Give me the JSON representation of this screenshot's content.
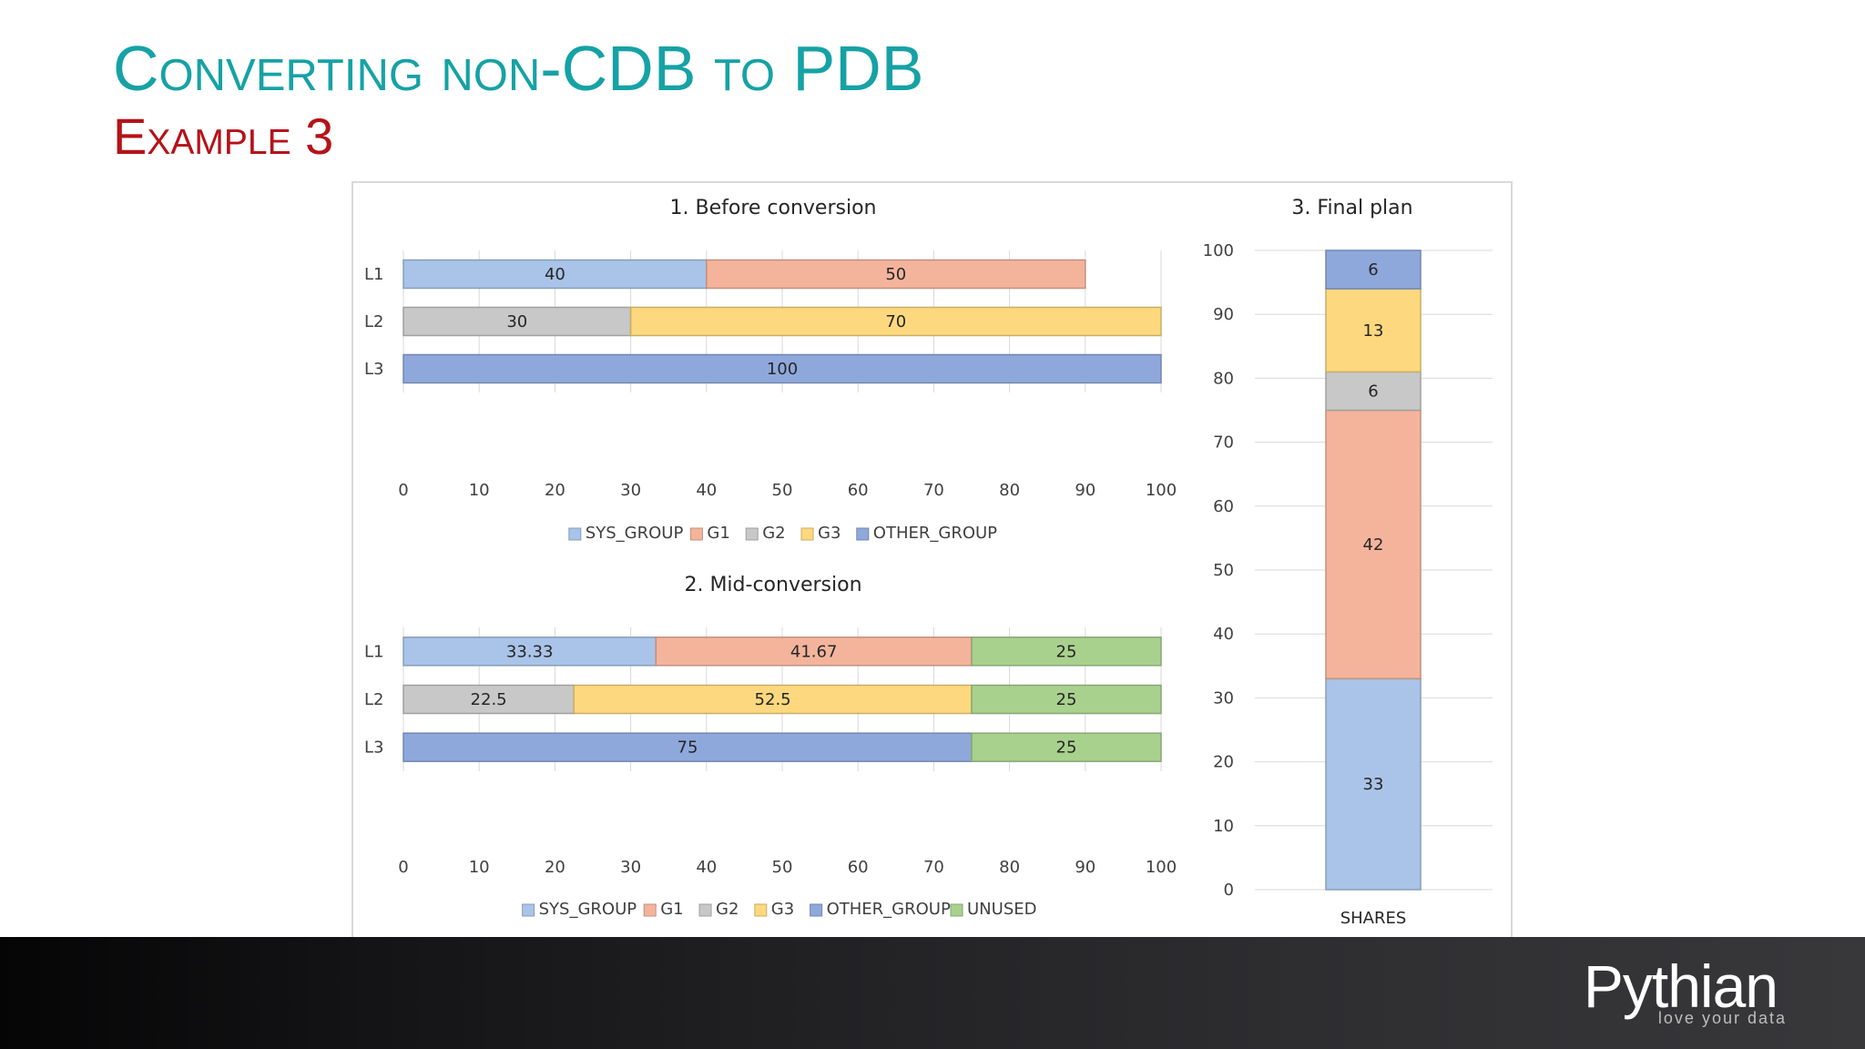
{
  "slide": {
    "title": "Converting non-CDB to PDB",
    "subtitle": "Example 3"
  },
  "brand": {
    "logo": "Pythian",
    "tagline": "love your data"
  },
  "colors": {
    "SYS_GROUP": "#a9c4e8",
    "G1": "#f4b49c",
    "G2": "#c8c8c8",
    "G3": "#fdd87e",
    "OTHER_GROUP": "#8fa8dc",
    "UNUSED": "#a9d18e"
  },
  "chart_data": [
    {
      "type": "bar",
      "orientation": "horizontal",
      "stacked": true,
      "title": "1. Before conversion",
      "categories": [
        "L1",
        "L2",
        "L3"
      ],
      "xlim": [
        0,
        100
      ],
      "xticks": [
        0,
        10,
        20,
        30,
        40,
        50,
        60,
        70,
        80,
        90,
        100
      ],
      "grid": true,
      "legend": "bottom",
      "series": [
        {
          "name": "SYS_GROUP",
          "values": [
            40,
            0,
            0
          ]
        },
        {
          "name": "G1",
          "values": [
            50,
            0,
            0
          ]
        },
        {
          "name": "G2",
          "values": [
            0,
            30,
            0
          ]
        },
        {
          "name": "G3",
          "values": [
            0,
            70,
            0
          ]
        },
        {
          "name": "OTHER_GROUP",
          "values": [
            0,
            0,
            100
          ]
        }
      ]
    },
    {
      "type": "bar",
      "orientation": "horizontal",
      "stacked": true,
      "title": "2. Mid-conversion",
      "categories": [
        "L1",
        "L2",
        "L3"
      ],
      "xlim": [
        0,
        100
      ],
      "xticks": [
        0,
        10,
        20,
        30,
        40,
        50,
        60,
        70,
        80,
        90,
        100
      ],
      "grid": true,
      "legend": "bottom",
      "series": [
        {
          "name": "SYS_GROUP",
          "values": [
            33.33,
            0,
            0
          ]
        },
        {
          "name": "G1",
          "values": [
            41.67,
            0,
            0
          ]
        },
        {
          "name": "G2",
          "values": [
            0,
            22.5,
            0
          ]
        },
        {
          "name": "G3",
          "values": [
            0,
            52.5,
            0
          ]
        },
        {
          "name": "OTHER_GROUP",
          "values": [
            0,
            0,
            75
          ]
        },
        {
          "name": "UNUSED",
          "values": [
            25,
            25,
            25
          ]
        }
      ]
    },
    {
      "type": "bar",
      "orientation": "vertical",
      "stacked": true,
      "title": "3. Final plan",
      "categories": [
        "SHARES"
      ],
      "ylim": [
        0,
        100
      ],
      "yticks": [
        0,
        10,
        20,
        30,
        40,
        50,
        60,
        70,
        80,
        90,
        100
      ],
      "grid": true,
      "legend": "none",
      "series": [
        {
          "name": "SYS_GROUP",
          "values": [
            33
          ]
        },
        {
          "name": "G1",
          "values": [
            42
          ]
        },
        {
          "name": "G2",
          "values": [
            6
          ]
        },
        {
          "name": "G3",
          "values": [
            13
          ]
        },
        {
          "name": "OTHER_GROUP",
          "values": [
            6
          ]
        }
      ]
    }
  ]
}
